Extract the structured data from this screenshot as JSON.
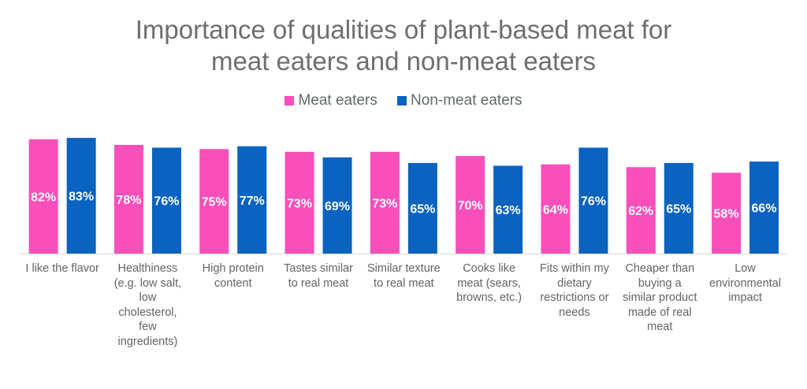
{
  "chart_data": {
    "type": "bar",
    "title": "Importance of qualities of plant-based meat for meat eaters and non-meat eaters",
    "title_lines": [
      "Importance of qualities of plant-based meat for",
      "meat eaters and non-meat eaters"
    ],
    "xlabel": "",
    "ylabel": "",
    "ylim": [
      0,
      100
    ],
    "grid": false,
    "legend_position": "top-center",
    "categories": [
      "I like the flavor",
      "Healthiness (e.g. low salt, low cholesterol, few ingredients)",
      "High protein content",
      "Tastes similar to real meat",
      "Similar texture to real meat",
      "Cooks like meat (sears, browns, etc.)",
      "Fits within my dietary restrictions or needs",
      "Cheaper than buying a similar product made of real meat",
      "Low environmental impact"
    ],
    "category_label_lines": [
      [
        "I like the flavor"
      ],
      [
        "Healthiness",
        "(e.g. low salt,",
        "low",
        "cholesterol,",
        "few",
        "ingredients)"
      ],
      [
        "High protein",
        "content"
      ],
      [
        "Tastes similar",
        "to real meat"
      ],
      [
        "Similar texture",
        "to real meat"
      ],
      [
        "Cooks like",
        "meat (sears,",
        "browns, etc.)"
      ],
      [
        "Fits within my",
        "dietary",
        "restrictions or",
        "needs"
      ],
      [
        "Cheaper than",
        "buying a",
        "similar product",
        "made of real",
        "meat"
      ],
      [
        "Low",
        "environmental",
        "impact"
      ]
    ],
    "series": [
      {
        "name": "Meat eaters",
        "color": "#f84fbb",
        "values": [
          82,
          78,
          75,
          73,
          73,
          70,
          64,
          62,
          58
        ]
      },
      {
        "name": "Non-meat eaters",
        "color": "#0a63c0",
        "values": [
          83,
          76,
          77,
          69,
          65,
          63,
          76,
          65,
          66
        ]
      }
    ],
    "data_label_suffix": "%"
  },
  "colors": {
    "title": "#6e6e6e",
    "axis": "#d9d9d9",
    "label": "#636363",
    "data_label": "#ffffff"
  }
}
